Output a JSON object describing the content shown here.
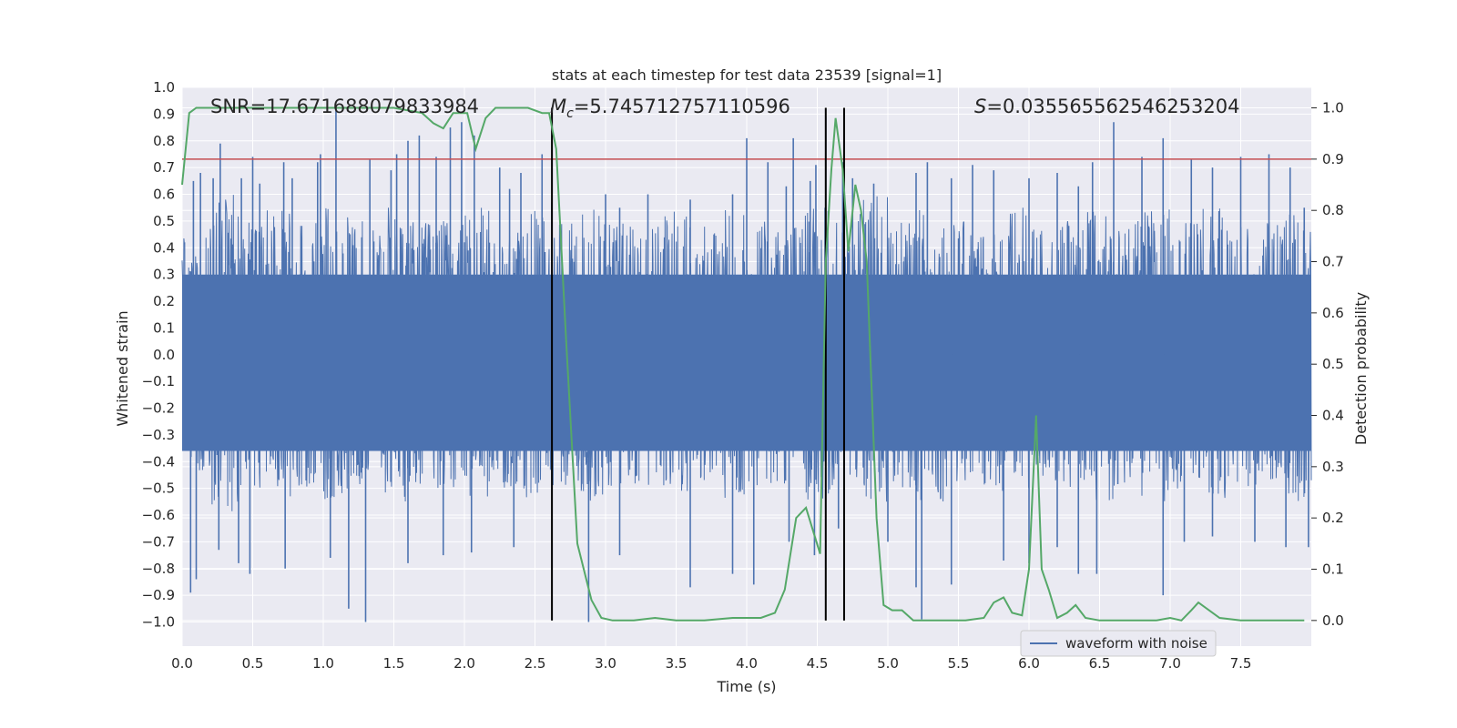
{
  "chart_data": {
    "type": "line",
    "title": "stats at each timestep for test data 23539 [signal=1]",
    "xlabel": "Time (s)",
    "ylabel_left": "Whitened strain",
    "ylabel_right": "Detection probability",
    "xlim": [
      0.0,
      8.0
    ],
    "ylim_left": [
      -1.09,
      1.0
    ],
    "ylim_right": [
      -0.05,
      1.04
    ],
    "x_ticks": [
      "0.0",
      "0.5",
      "1.0",
      "1.5",
      "2.0",
      "2.5",
      "3.0",
      "3.5",
      "4.0",
      "4.5",
      "5.0",
      "5.5",
      "6.0",
      "6.5",
      "7.0",
      "7.5"
    ],
    "y_left_ticks": [
      "1.0",
      "0.9",
      "0.8",
      "0.7",
      "0.6",
      "0.5",
      "0.4",
      "0.3",
      "0.2",
      "0.1",
      "0.0",
      "−0.1",
      "−0.2",
      "−0.3",
      "−0.4",
      "−0.5",
      "−0.6",
      "−0.7",
      "−0.8",
      "−0.9",
      "−1.0"
    ],
    "y_right_ticks": [
      "1.0",
      "0.9",
      "0.8",
      "0.7",
      "0.6",
      "0.5",
      "0.4",
      "0.3",
      "0.2",
      "0.1",
      "0.0"
    ],
    "annotations": {
      "snr": "SNR=17.671688079833984",
      "mc_symbol": "M",
      "mc_sub": "c",
      "mc_value": "=5.745712757110596",
      "s_symbol": "S",
      "s_value": "=0.035565562546253204"
    },
    "threshold": {
      "value": 0.9,
      "color": "#c44e52"
    },
    "vertical_lines_x": [
      2.62,
      4.56,
      4.69
    ],
    "legend": {
      "label": "waveform with noise",
      "position": "lower-right"
    },
    "series": [
      {
        "name": "waveform with noise",
        "color": "#4c72b0",
        "envelope_upper": [
          0.45,
          0.6,
          0.5,
          0.55,
          0.5,
          0.55,
          0.5,
          0.55,
          0.5,
          0.5,
          0.55,
          0.5,
          0.55,
          0.5,
          0.55,
          0.5,
          0.5,
          0.55,
          0.5,
          0.55,
          0.5,
          0.5,
          0.55,
          0.5,
          0.6,
          0.5,
          0.55,
          0.5,
          0.5,
          0.55,
          0.5,
          0.5,
          0.55,
          0.5,
          0.55,
          0.5,
          0.55,
          0.5,
          0.5,
          0.55,
          0.5
        ],
        "spikes": [
          [
            0.08,
            0.65
          ],
          [
            0.13,
            0.68
          ],
          [
            0.22,
            0.66
          ],
          [
            0.27,
            0.79
          ],
          [
            0.42,
            0.66
          ],
          [
            0.5,
            0.74
          ],
          [
            0.55,
            0.64
          ],
          [
            0.72,
            0.72
          ],
          [
            0.78,
            0.66
          ],
          [
            0.96,
            0.72
          ],
          [
            0.98,
            0.75
          ],
          [
            1.09,
            0.92
          ],
          [
            1.33,
            0.73
          ],
          [
            1.48,
            0.69
          ],
          [
            1.52,
            0.75
          ],
          [
            1.6,
            0.8
          ],
          [
            1.68,
            0.82
          ],
          [
            1.8,
            0.74
          ],
          [
            1.9,
            0.85
          ],
          [
            1.98,
            0.87
          ],
          [
            2.07,
            0.82
          ],
          [
            2.25,
            0.7
          ],
          [
            2.32,
            0.62
          ],
          [
            2.4,
            0.68
          ],
          [
            2.55,
            0.75
          ],
          [
            2.62,
            0.57
          ],
          [
            3.0,
            0.6
          ],
          [
            3.1,
            0.55
          ],
          [
            3.3,
            0.6
          ],
          [
            3.6,
            0.58
          ],
          [
            3.9,
            0.6
          ],
          [
            4.0,
            0.81
          ],
          [
            4.15,
            0.72
          ],
          [
            4.33,
            0.81
          ],
          [
            4.28,
            0.63
          ],
          [
            4.45,
            0.65
          ],
          [
            4.49,
            0.71
          ],
          [
            4.56,
            0.89
          ],
          [
            4.68,
            0.72
          ],
          [
            4.75,
            0.66
          ],
          [
            4.9,
            0.64
          ],
          [
            5.2,
            0.68
          ],
          [
            5.28,
            0.72
          ],
          [
            5.45,
            0.66
          ],
          [
            5.6,
            0.71
          ],
          [
            5.75,
            0.69
          ],
          [
            6.0,
            0.66
          ],
          [
            6.2,
            0.68
          ],
          [
            6.35,
            0.63
          ],
          [
            6.45,
            0.72
          ],
          [
            6.6,
            0.87
          ],
          [
            6.8,
            0.74
          ],
          [
            6.95,
            0.81
          ],
          [
            7.15,
            0.73
          ],
          [
            7.3,
            0.7
          ],
          [
            7.5,
            0.74
          ],
          [
            7.7,
            0.75
          ],
          [
            7.85,
            0.7
          ],
          [
            7.95,
            0.55
          ],
          [
            0.06,
            -0.89
          ],
          [
            0.1,
            -0.84
          ],
          [
            0.26,
            -0.73
          ],
          [
            0.4,
            -0.78
          ],
          [
            0.48,
            -0.82
          ],
          [
            0.73,
            -0.8
          ],
          [
            1.05,
            -0.76
          ],
          [
            1.18,
            -0.95
          ],
          [
            1.3,
            -1.0
          ],
          [
            1.6,
            -0.78
          ],
          [
            1.85,
            -0.75
          ],
          [
            2.05,
            -0.74
          ],
          [
            2.35,
            -0.72
          ],
          [
            2.88,
            -1.0
          ],
          [
            3.1,
            -0.75
          ],
          [
            3.6,
            -0.87
          ],
          [
            3.9,
            -0.82
          ],
          [
            4.05,
            -0.86
          ],
          [
            4.3,
            -0.7
          ],
          [
            4.48,
            -0.75
          ],
          [
            4.65,
            -0.65
          ],
          [
            5.0,
            -0.7
          ],
          [
            5.2,
            -0.87
          ],
          [
            5.24,
            -0.99
          ],
          [
            5.45,
            -0.86
          ],
          [
            5.82,
            -0.77
          ],
          [
            6.0,
            -0.78
          ],
          [
            6.2,
            -0.72
          ],
          [
            6.35,
            -0.82
          ],
          [
            6.48,
            -0.82
          ],
          [
            6.95,
            -0.9
          ],
          [
            7.1,
            -0.7
          ],
          [
            7.3,
            -0.68
          ],
          [
            7.6,
            -0.7
          ],
          [
            7.82,
            -0.72
          ],
          [
            7.98,
            -0.72
          ]
        ]
      },
      {
        "name": "",
        "axis": "right",
        "color": "#55a868",
        "x": [
          0.0,
          0.05,
          0.1,
          0.3,
          0.5,
          0.7,
          0.9,
          1.1,
          1.3,
          1.5,
          1.7,
          1.78,
          1.85,
          1.92,
          1.98,
          2.02,
          2.08,
          2.15,
          2.22,
          2.35,
          2.45,
          2.55,
          2.6,
          2.65,
          2.72,
          2.8,
          2.9,
          2.97,
          3.05,
          3.2,
          3.35,
          3.5,
          3.7,
          3.9,
          4.1,
          4.2,
          4.27,
          4.35,
          4.42,
          4.52,
          4.56,
          4.6,
          4.63,
          4.68,
          4.72,
          4.77,
          4.81,
          4.85,
          4.92,
          4.97,
          5.03,
          5.1,
          5.18,
          5.25,
          5.4,
          5.55,
          5.68,
          5.75,
          5.82,
          5.88,
          5.95,
          6.0,
          6.05,
          6.09,
          6.14,
          6.2,
          6.27,
          6.33,
          6.4,
          6.5,
          6.7,
          6.9,
          7.0,
          7.08,
          7.15,
          7.2,
          7.35,
          7.5,
          7.7,
          7.95
        ],
        "y": [
          0.85,
          0.99,
          1.0,
          1.0,
          1.0,
          1.0,
          1.0,
          1.0,
          1.0,
          1.0,
          0.99,
          0.97,
          0.96,
          0.99,
          0.99,
          0.99,
          0.92,
          0.98,
          1.0,
          1.0,
          1.0,
          0.99,
          0.99,
          0.92,
          0.55,
          0.15,
          0.04,
          0.005,
          0.0,
          0.0,
          0.005,
          0.0,
          0.0,
          0.005,
          0.005,
          0.015,
          0.06,
          0.2,
          0.22,
          0.13,
          0.7,
          0.88,
          0.98,
          0.88,
          0.72,
          0.85,
          0.8,
          0.7,
          0.2,
          0.03,
          0.02,
          0.02,
          0.0,
          0.0,
          0.0,
          0.0,
          0.005,
          0.035,
          0.045,
          0.015,
          0.01,
          0.1,
          0.4,
          0.1,
          0.06,
          0.005,
          0.015,
          0.03,
          0.005,
          0.0,
          0.0,
          0.0,
          0.005,
          0.0,
          0.02,
          0.035,
          0.005,
          0.0,
          0.0,
          0.0
        ]
      }
    ]
  }
}
